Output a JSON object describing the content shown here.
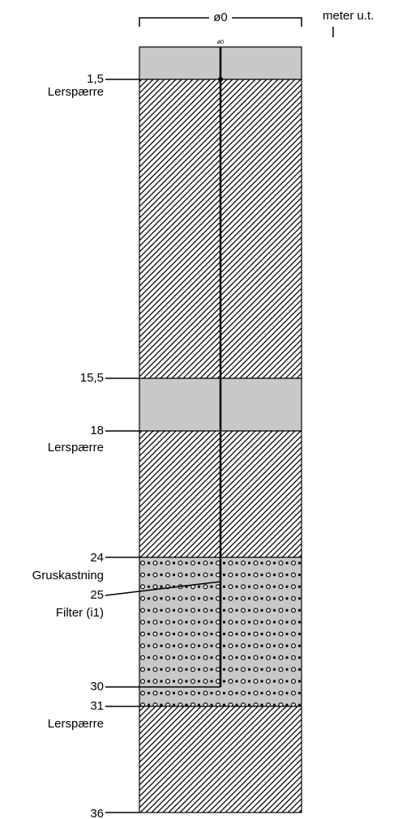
{
  "header": {
    "diameter": "ø0",
    "unit": "meter u.t.",
    "pipe_label": "ø0"
  },
  "markers": [
    {
      "depth": "1,5",
      "note": "Lerspærre"
    },
    {
      "depth": "15,5"
    },
    {
      "depth": "18",
      "note": "Lerspærre"
    },
    {
      "depth": "24",
      "note": "Gruskastning"
    },
    {
      "depth": "25",
      "note": "Filter (i1)"
    },
    {
      "depth": "30"
    },
    {
      "depth": "31",
      "note": "Lerspærre"
    },
    {
      "depth": "36"
    }
  ]
}
